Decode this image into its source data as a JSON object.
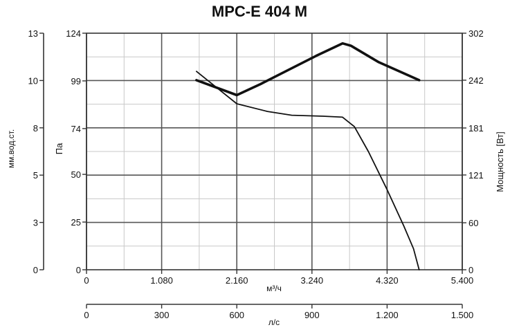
{
  "chart_data": {
    "type": "line",
    "title": "MPC-E 404 M",
    "x_axis_primary": {
      "label": "м³/ч",
      "range": [
        0,
        5400
      ],
      "tick_values": [
        0,
        1080,
        2160,
        3240,
        4320,
        5400
      ],
      "tick_labels": [
        "0",
        "1.080",
        "2.160",
        "3.240",
        "4.320",
        "5.400"
      ]
    },
    "x_axis_secondary": {
      "label": "л/с",
      "range": [
        0,
        1500
      ],
      "tick_values": [
        0,
        300,
        600,
        900,
        1200,
        1500
      ],
      "tick_labels": [
        "0",
        "300",
        "600",
        "900",
        "1.200",
        "1.500"
      ]
    },
    "y_axis_pa": {
      "label": "Па",
      "range": [
        0,
        124
      ],
      "tick_values": [
        0,
        25,
        50,
        74,
        99,
        124
      ],
      "tick_labels": [
        "0",
        "25",
        "50",
        "74",
        "99",
        "124"
      ]
    },
    "y_axis_mm": {
      "label": "мм.вод.ст.",
      "tick_values": [
        0,
        3,
        5,
        8,
        10,
        13
      ],
      "tick_labels": [
        "0",
        "3",
        "5",
        "8",
        "10",
        "13"
      ]
    },
    "y_axis_power": {
      "label": "Мощность [Вт]",
      "range": [
        0,
        302
      ],
      "tick_values": [
        0,
        60,
        121,
        181,
        242,
        302
      ],
      "tick_labels": [
        "0",
        "60",
        "121",
        "181",
        "242",
        "302"
      ]
    },
    "grid": true,
    "series": [
      {
        "axis": "pressure",
        "values": [
          [
            1580,
            104
          ],
          [
            2160,
            87
          ],
          [
            2600,
            83
          ],
          [
            2950,
            81
          ],
          [
            3400,
            80.5
          ],
          [
            3680,
            80
          ],
          [
            3850,
            75
          ],
          [
            4050,
            62
          ],
          [
            4320,
            42
          ],
          [
            4560,
            23
          ],
          [
            4700,
            11
          ],
          [
            4780,
            0
          ]
        ]
      },
      {
        "axis": "power",
        "values": [
          [
            1580,
            242
          ],
          [
            2160,
            223
          ],
          [
            2500,
            237
          ],
          [
            2900,
            255
          ],
          [
            3300,
            273
          ],
          [
            3680,
            289
          ],
          [
            3800,
            286
          ],
          [
            4200,
            265
          ],
          [
            4780,
            242
          ]
        ]
      }
    ]
  }
}
